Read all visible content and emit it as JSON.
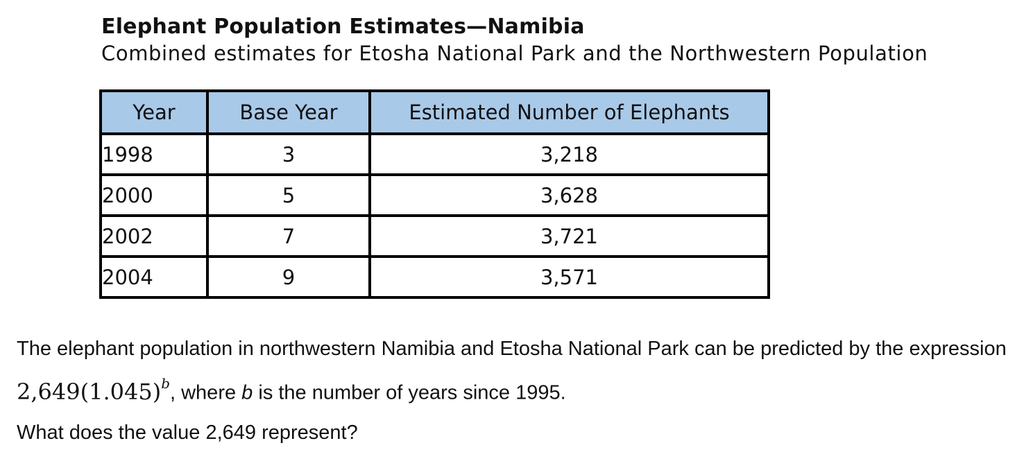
{
  "header": {
    "title": "Elephant Population Estimates—Namibia",
    "subtitle": "Combined estimates for Etosha National Park and the Northwestern Population"
  },
  "table": {
    "headers": [
      "Year",
      "Base Year",
      "Estimated Number of Elephants"
    ],
    "rows": [
      [
        "1998",
        "3",
        "3,218"
      ],
      [
        "2000",
        "5",
        "3,628"
      ],
      [
        "2002",
        "7",
        "3,721"
      ],
      [
        "2004",
        "9",
        "3,571"
      ]
    ]
  },
  "question": {
    "text_before": "The elephant population in northwestern Namibia and Etosha National Park can be predicted by the expression ",
    "expression_base": "2,649(1.045)",
    "expression_exponent": "b",
    "text_after_1": ", where ",
    "variable": "b",
    "text_after_2": " is the number of years since 1995.",
    "ask": "What does the value 2,649 represent?"
  },
  "colors": {
    "header_fill": "#a9c9e8",
    "border": "#000000"
  }
}
